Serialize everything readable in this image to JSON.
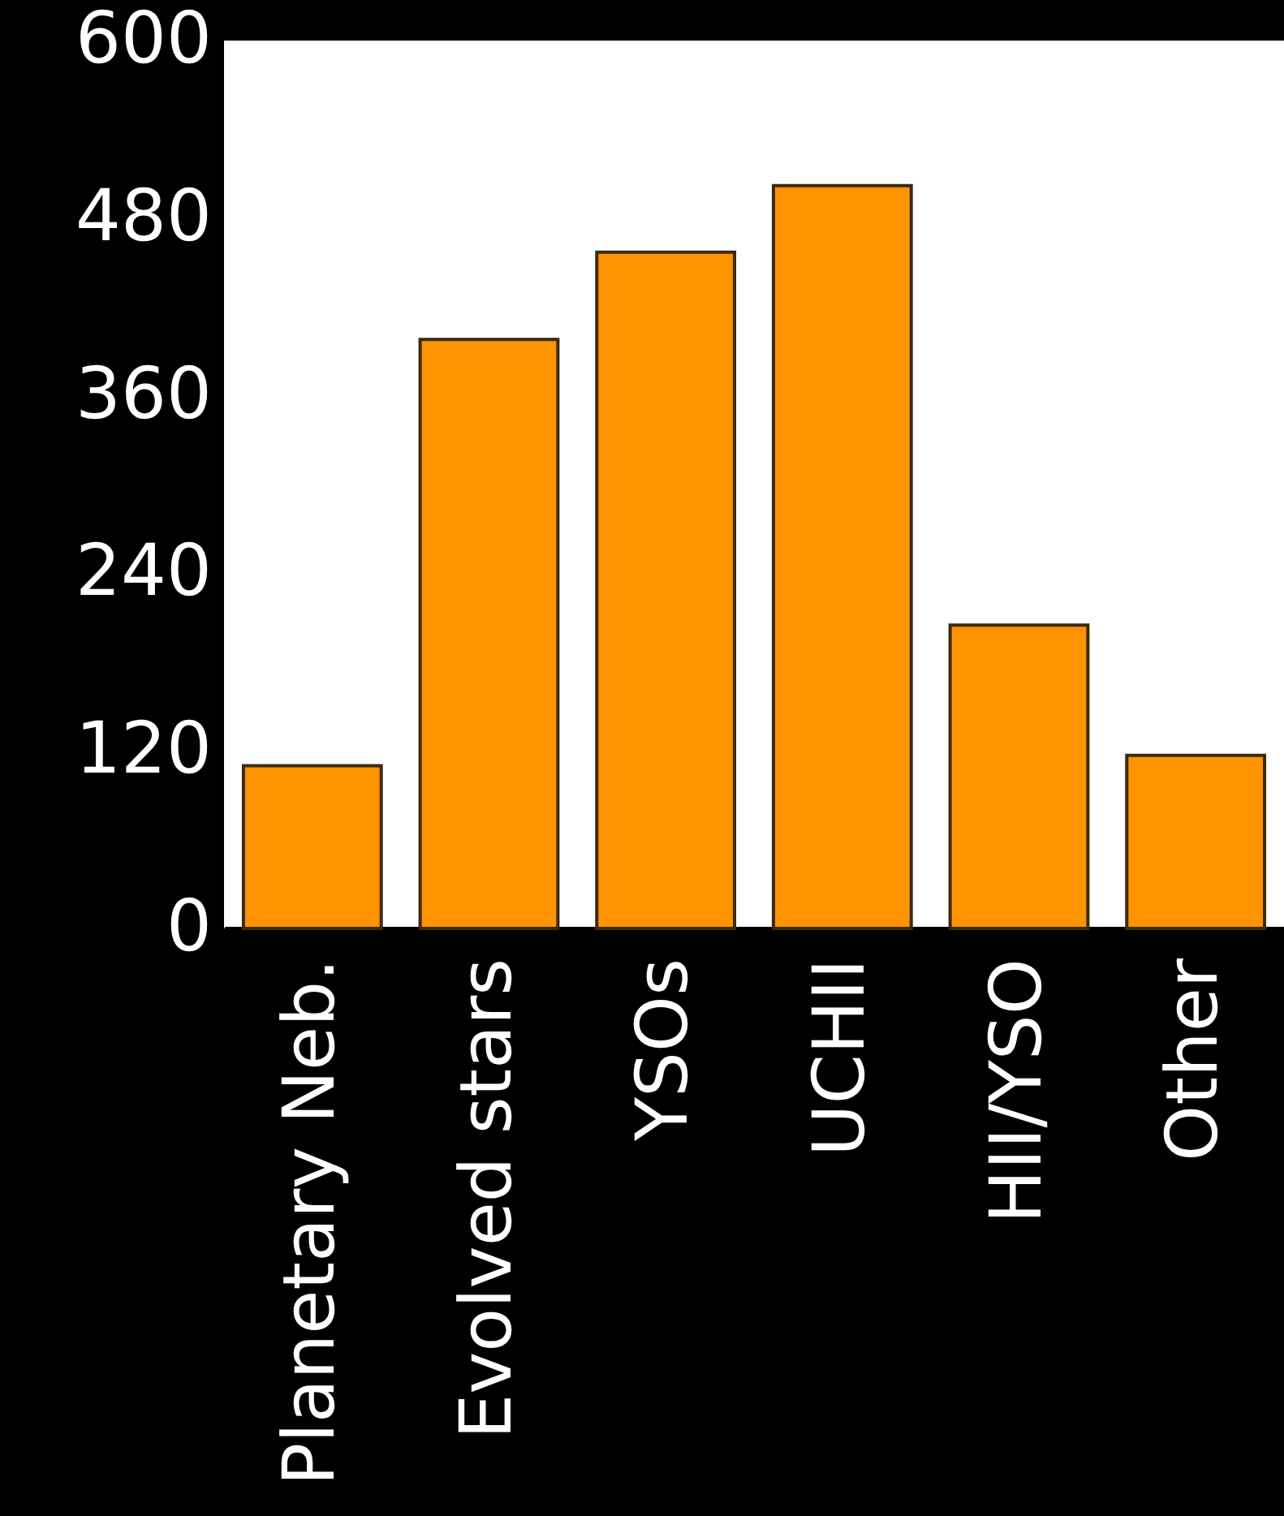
{
  "chart_data": {
    "type": "bar",
    "categories": [
      "Planetary Neb.",
      "Evolved stars",
      "YSOs",
      "UCHII",
      "HII/YSO",
      "Other"
    ],
    "values": [
      110,
      398,
      457,
      502,
      205,
      117
    ],
    "color": "#ff9300",
    "ylim": [
      0,
      600
    ],
    "yticks": [
      0,
      120,
      240,
      360,
      480,
      600
    ],
    "grid": false
  }
}
